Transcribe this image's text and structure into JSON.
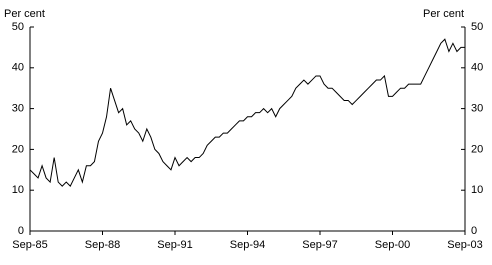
{
  "chart_data": {
    "type": "line",
    "y_label": "Per cent",
    "y2_label": "Per cent",
    "categories": [
      "Sep-85",
      null,
      null,
      null,
      null,
      null,
      null,
      null,
      null,
      null,
      null,
      null,
      null,
      null,
      null,
      null,
      null,
      null,
      "Sep-88",
      null,
      null,
      null,
      null,
      null,
      null,
      null,
      null,
      null,
      null,
      null,
      null,
      null,
      null,
      null,
      null,
      null,
      "Sep-91",
      null,
      null,
      null,
      null,
      null,
      null,
      null,
      null,
      null,
      null,
      null,
      null,
      null,
      null,
      null,
      null,
      null,
      "Sep-94",
      null,
      null,
      null,
      null,
      null,
      null,
      null,
      null,
      null,
      null,
      null,
      null,
      null,
      null,
      null,
      null,
      null,
      "Sep-97",
      null,
      null,
      null,
      null,
      null,
      null,
      null,
      null,
      null,
      null,
      null,
      null,
      null,
      null,
      null,
      null,
      null,
      "Sep-00",
      null,
      null,
      null,
      null,
      null,
      null,
      null,
      null,
      null,
      null,
      null,
      null,
      null,
      null,
      null,
      null,
      null,
      "Sep-03"
    ],
    "series": [
      {
        "color": "#000000",
        "values": [
          15,
          14,
          13,
          16,
          13,
          12,
          18,
          12,
          11,
          12,
          11,
          13,
          15,
          12,
          16,
          16,
          17,
          22,
          24,
          28,
          35,
          32,
          29,
          30,
          26,
          27,
          25,
          24,
          22,
          25,
          23,
          20,
          19,
          17,
          16,
          15,
          18,
          16,
          17,
          18,
          17,
          18,
          18,
          19,
          21,
          22,
          23,
          23,
          24,
          24,
          25,
          26,
          27,
          27,
          28,
          28,
          29,
          29,
          30,
          29,
          30,
          28,
          30,
          31,
          32,
          33,
          35,
          36,
          37,
          36,
          37,
          38,
          38,
          36,
          35,
          35,
          34,
          33,
          32,
          32,
          31,
          32,
          33,
          34,
          35,
          36,
          37,
          37,
          38,
          33,
          33,
          34,
          35,
          35,
          36,
          36,
          36,
          36,
          38,
          40,
          42,
          44,
          46,
          47,
          44,
          46,
          44,
          45,
          45
        ]
      }
    ],
    "ylim": [
      0,
      50
    ],
    "yticks": [
      0,
      10,
      20,
      30,
      40,
      50
    ],
    "y2lim": [
      0,
      50
    ],
    "y2ticks": [
      0,
      10,
      20,
      30,
      40,
      50
    ],
    "grid": false
  }
}
